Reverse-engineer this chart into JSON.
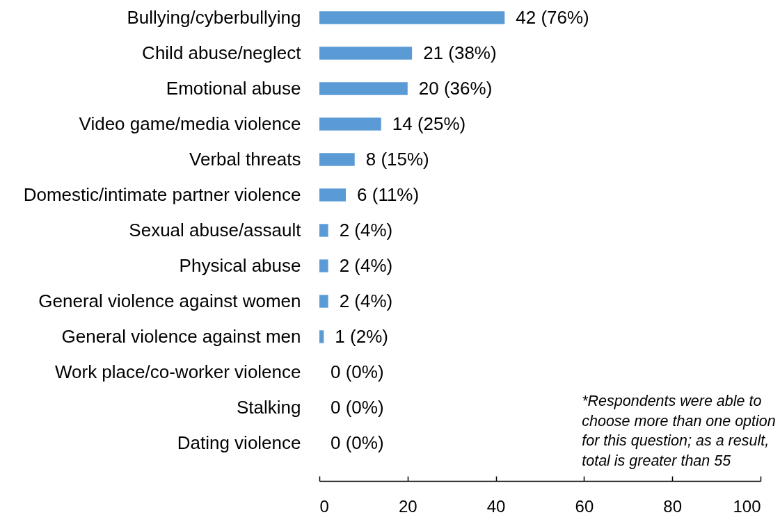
{
  "chart_data": {
    "type": "bar",
    "orientation": "horizontal",
    "categories": [
      "Bullying/cyberbullying",
      "Child abuse/neglect",
      "Emotional abuse",
      "Video game/media violence",
      "Verbal threats",
      "Domestic/intimate partner violence",
      "Sexual abuse/assault",
      "Physical abuse",
      "General violence against women",
      "General violence against men",
      "Work place/co-worker violence",
      "Stalking",
      "Dating violence"
    ],
    "values": [
      42,
      21,
      20,
      14,
      8,
      6,
      2,
      2,
      2,
      1,
      0,
      0,
      0
    ],
    "value_labels": [
      "42 (76%)",
      "21 (38%)",
      "20 (36%)",
      "14 (25%)",
      "8 (15%)",
      "6 (11%)",
      "2 (4%)",
      "2 (4%)",
      "2 (4%)",
      "1 (2%)",
      "0 (0%)",
      "0 (0%)",
      "0 (0%)"
    ],
    "color": "#5b9bd5",
    "xlim": [
      0,
      100
    ],
    "xticks": [
      0,
      20,
      40,
      60,
      80,
      100
    ],
    "annotations": [
      "*Respondents were able to choose more than one option for this question; as a result, total is greater than 55"
    ]
  }
}
